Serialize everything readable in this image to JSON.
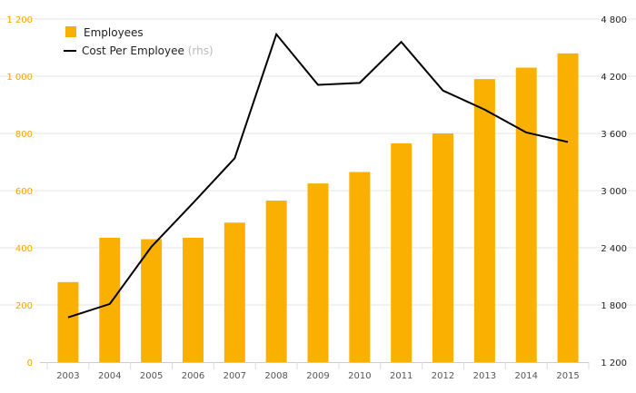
{
  "colors": {
    "bar": "#f9b000",
    "line": "#000000",
    "grid": "#e6e6e6",
    "left_axis_text": "#f5a400",
    "right_axis_text": "#222222",
    "x_axis_text": "#555555",
    "legend_suffix": "#bbbbbb"
  },
  "chart_data": {
    "type": "bar",
    "categories": [
      "2003",
      "2004",
      "2005",
      "2006",
      "2007",
      "2008",
      "2009",
      "2010",
      "2011",
      "2012",
      "2013",
      "2014",
      "2015"
    ],
    "series": [
      {
        "name": "Employees",
        "type": "bar",
        "axis": "left",
        "values": [
          280,
          435,
          430,
          435,
          488,
          565,
          625,
          665,
          765,
          800,
          990,
          1030,
          1080
        ]
      },
      {
        "name": "Cost Per Employee",
        "name_suffix": "(rhs)",
        "type": "line",
        "axis": "right",
        "values": [
          1670,
          1810,
          2410,
          2870,
          3340,
          4640,
          4110,
          4130,
          4560,
          4050,
          3850,
          3610,
          3510
        ]
      }
    ],
    "y_left": {
      "ylim": [
        0,
        1200
      ],
      "ticks": [
        0,
        200,
        400,
        600,
        800,
        1000,
        1200
      ],
      "tick_labels": [
        "0",
        "200",
        "400",
        "600",
        "800",
        "1 000",
        "1 200"
      ]
    },
    "y_right": {
      "ylim": [
        1200,
        4800
      ],
      "ticks": [
        1200,
        1800,
        2400,
        3000,
        3600,
        4200,
        4800
      ],
      "tick_labels": [
        "1 200",
        "1 800",
        "2 400",
        "3 000",
        "3 600",
        "4 200",
        "4 800"
      ]
    },
    "grid": true,
    "legend_position": "top-left"
  }
}
